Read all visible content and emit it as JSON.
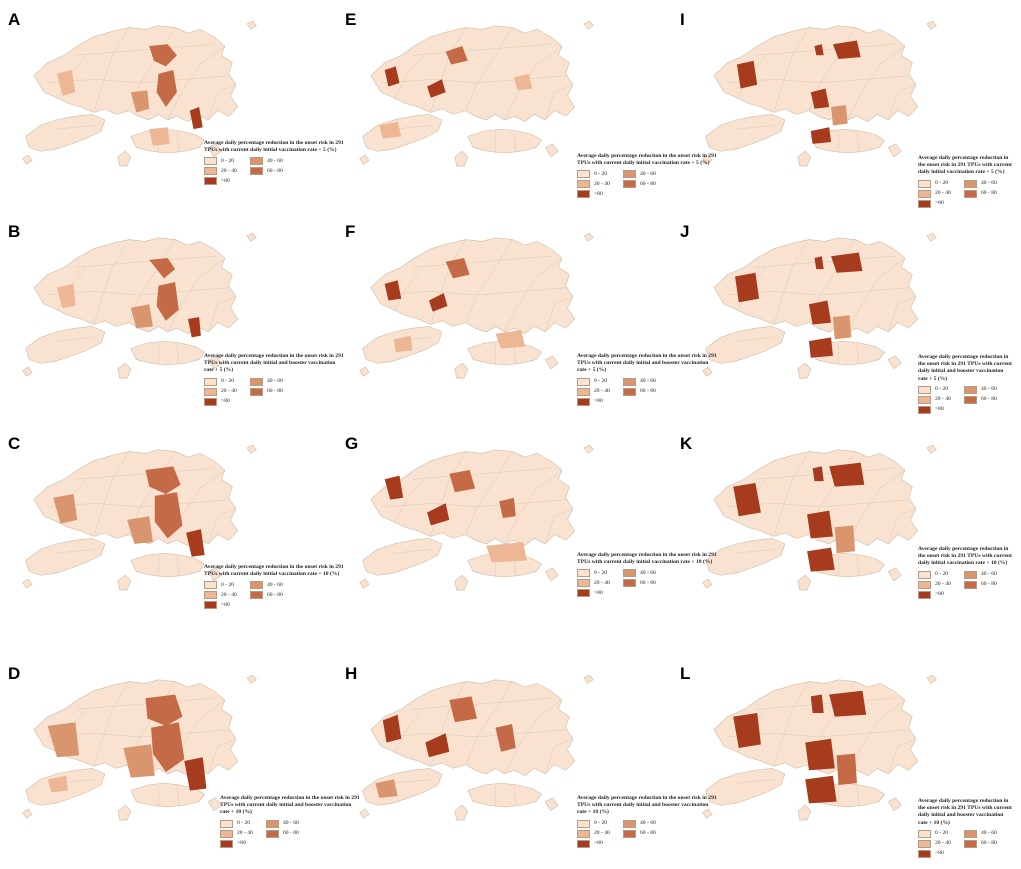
{
  "colors": {
    "class_0_20": "#f9e2cf",
    "class_20_40": "#edb795",
    "class_40_60": "#d9956d",
    "class_60_80": "#c56a47",
    "class_gt80": "#a63b1e",
    "border": "#c9b9a7",
    "sea": "#ffffff"
  },
  "legend_classes": [
    {
      "label": "0 - 20",
      "color_key": "class_0_20"
    },
    {
      "label": "40 - 60",
      "color_key": "class_40_60"
    },
    {
      "label": "20 - 40",
      "color_key": "class_20_40"
    },
    {
      "label": "60 - 80",
      "color_key": "class_60_80"
    },
    {
      "label": ">80",
      "color_key": "class_gt80"
    }
  ],
  "panels": [
    {
      "letter": "A",
      "legend_title": "Average daily percentage reduction in the onset risk in 291 TPUs with current daily initial vaccination rate + 5 (%)"
    },
    {
      "letter": "B",
      "legend_title": "Average daily percentage reduction in the onset risk in 291 TPUs with current daily initial and booster vaccination rate + 5 (%)"
    },
    {
      "letter": "C",
      "legend_title": "Average daily percentage reduction in the onset risk in 291 TPUs with current daily initial vaccination rate + 10 (%)"
    },
    {
      "letter": "D",
      "legend_title": "Average daily percentage reduction in the onset risk in 291 TPUs with current daily initial and booster vaccination rate + 10 (%)"
    },
    {
      "letter": "E",
      "legend_title": "Average daily percentage reduction in the onset risk in 291 TPUs with current daily initial vaccination rate + 5 (%)"
    },
    {
      "letter": "F",
      "legend_title": "Average daily percentage reduction in the onset risk in 291 TPUs with current daily initial and booster vaccination rate + 5 (%)"
    },
    {
      "letter": "G",
      "legend_title": "Average daily percentage reduction in the onset risk in 291 TPUs with current daily initial vaccination rate + 10 (%)"
    },
    {
      "letter": "H",
      "legend_title": "Average daily percentage reduction in the onset risk in 291 TPUs with current daily initial and booster vaccination rate + 10 (%)"
    },
    {
      "letter": "I",
      "legend_title": "Average daily percentage reduction in the onset risk in 291 TPUs with current daily initial vaccination rate + 5 (%)"
    },
    {
      "letter": "J",
      "legend_title": "Average daily percentage reduction in the onset risk in 291 TPUs with current daily initial and booster vaccination rate + 5 (%)"
    },
    {
      "letter": "K",
      "legend_title": "Average daily percentage reduction in the onset risk in 291 TPUs with current daily initial vaccination rate + 10 (%)"
    },
    {
      "letter": "L",
      "legend_title": "Average daily percentage reduction in the onset risk in 291 TPUs with current daily initial and booster vaccination rate + 10 (%)"
    }
  ]
}
